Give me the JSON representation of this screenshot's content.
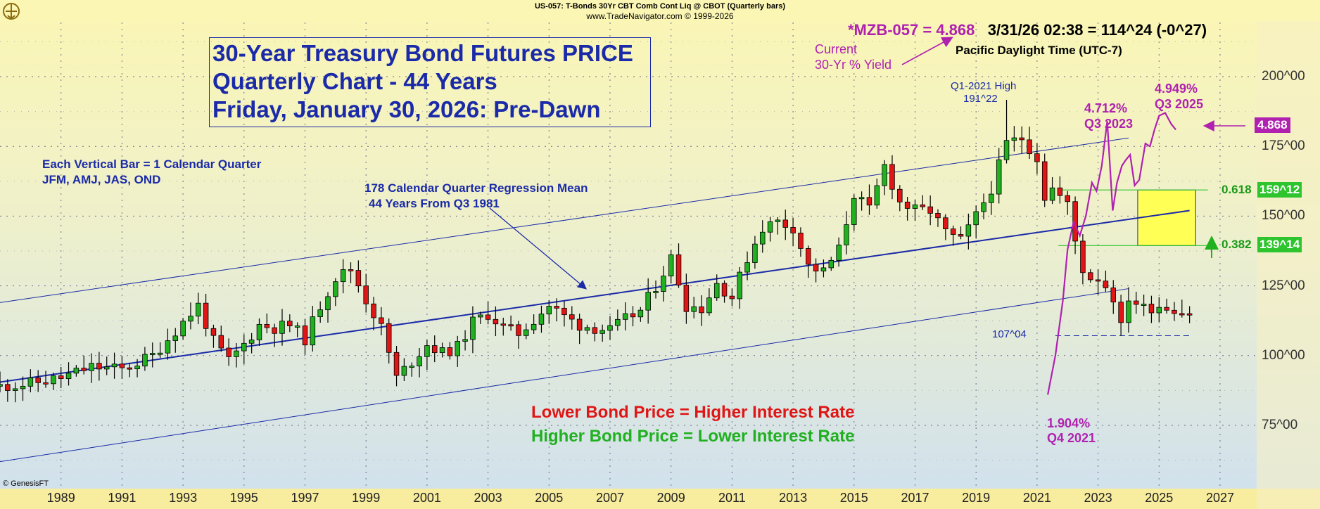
{
  "header": {
    "line1": "US-057:  T-Bonds 30Yr CBT Comb Cont Liq @ CBOT  (Quarterly bars)",
    "line2": "www.TradeNavigator.com © 1999-2026"
  },
  "title_box": {
    "line1": "30-Year Treasury Bond Futures PRICE",
    "line2": "Quarterly Chart - 44 Years",
    "line3": "Friday, January 30, 2026: Pre-Dawn"
  },
  "quote": {
    "symbol_value": "*MZB-057 = 4.868",
    "rest": "3/31/26 02:38 = 114^24 (-0^27)",
    "timezone": "Pacific Daylight Time (UTC-7)"
  },
  "annotations": {
    "current_line1": "Current",
    "current_line2": "30-Yr % Yield",
    "q1_high_line1": "Q1-2021 High",
    "q1_high_line2": "191^22",
    "y4712_line1": "4.712%",
    "y4712_line2": "Q3 2023",
    "y4949_line1": "4.949%",
    "y4949_line2": "Q3 2025",
    "y1904_line1": "1.904%",
    "y1904_line2": "Q4 2021",
    "each_bar_line1": "Each Vertical Bar = 1 Calendar Quarter",
    "each_bar_line2": "JFM, AMJ, JAS, OND",
    "regression_line1": "178 Calendar Quarter Regression Mean",
    "regression_line2": "44 Years From Q3 1981",
    "low_label": "107^04",
    "lower_price": "Lower Bond Price = Higher Interest Rate",
    "higher_price": "Higher Bond Price = Lower Interest Rate",
    "credit": "© GenesisFT"
  },
  "fib": {
    "upper_ratio": "0.618",
    "upper_price": "159^12",
    "lower_ratio": "0.382",
    "lower_price": "139^14"
  },
  "current_tag": "4.868",
  "colors": {
    "bull": "#20b020",
    "bear": "#e01515",
    "regression": "#1a2aa8",
    "yield": "#b021b0",
    "fib_box": "#ffff55",
    "fib_line": "#2ec42e",
    "bg_top": "#fbf6b4",
    "bg_bottom": "#cfe0ef"
  },
  "chart_data": {
    "type": "candlestick",
    "title": "30-Year Treasury Bond Futures PRICE",
    "ylim": [
      55,
      225
    ],
    "y_ticks": [
      "75^00",
      "100^00",
      "125^00",
      "150^00",
      "175^00",
      "200^00"
    ],
    "y_tick_values": [
      75,
      100,
      125,
      150,
      175,
      200
    ],
    "x_ticks": [
      "1989",
      "1991",
      "1993",
      "1995",
      "1997",
      "1999",
      "2001",
      "2003",
      "2005",
      "2007",
      "2009",
      "2011",
      "2013",
      "2015",
      "2017",
      "2019",
      "2021",
      "2023",
      "2025",
      "2027"
    ],
    "x_tick_values": [
      1989,
      1991,
      1993,
      1995,
      1997,
      1999,
      2001,
      2003,
      2005,
      2007,
      2009,
      2011,
      2013,
      2015,
      2017,
      2019,
      2021,
      2023,
      2025,
      2027
    ],
    "xlim": [
      1987,
      2028.2
    ],
    "grid": true,
    "close_anchors": [
      [
        1987.0,
        89
      ],
      [
        1988.0,
        90
      ],
      [
        1989.0,
        92
      ],
      [
        1990.0,
        96
      ],
      [
        1991.0,
        95
      ],
      [
        1992.0,
        100
      ],
      [
        1993.0,
        112
      ],
      [
        1993.5,
        118
      ],
      [
        1994.0,
        105
      ],
      [
        1994.5,
        98
      ],
      [
        1995.0,
        104
      ],
      [
        1995.5,
        111
      ],
      [
        1996.0,
        110
      ],
      [
        1996.5,
        111
      ],
      [
        1997.0,
        106
      ],
      [
        1997.5,
        118
      ],
      [
        1998.0,
        128
      ],
      [
        1998.5,
        131
      ],
      [
        1999.0,
        120
      ],
      [
        1999.5,
        110
      ],
      [
        2000.0,
        92
      ],
      [
        2000.5,
        98
      ],
      [
        2001.0,
        104
      ],
      [
        2001.5,
        101
      ],
      [
        2002.0,
        103
      ],
      [
        2002.5,
        112
      ],
      [
        2003.0,
        115
      ],
      [
        2003.5,
        110
      ],
      [
        2004.0,
        108
      ],
      [
        2004.5,
        113
      ],
      [
        2005.0,
        118
      ],
      [
        2005.5,
        114
      ],
      [
        2006.0,
        111
      ],
      [
        2006.5,
        110
      ],
      [
        2007.0,
        109
      ],
      [
        2007.5,
        113
      ],
      [
        2008.0,
        116
      ],
      [
        2008.5,
        125
      ],
      [
        2009.0,
        135
      ],
      [
        2009.5,
        118
      ],
      [
        2010.0,
        117
      ],
      [
        2010.5,
        126
      ],
      [
        2011.0,
        121
      ],
      [
        2011.5,
        135
      ],
      [
        2012.0,
        146
      ],
      [
        2012.5,
        148
      ],
      [
        2013.0,
        146
      ],
      [
        2013.5,
        132
      ],
      [
        2014.0,
        130
      ],
      [
        2014.5,
        138
      ],
      [
        2015.0,
        158
      ],
      [
        2015.5,
        152
      ],
      [
        2016.0,
        168
      ],
      [
        2016.5,
        155
      ],
      [
        2017.0,
        152
      ],
      [
        2017.5,
        152
      ],
      [
        2018.0,
        144
      ],
      [
        2018.5,
        141
      ],
      [
        2019.0,
        150
      ],
      [
        2019.5,
        160
      ],
      [
        2020.0,
        176
      ],
      [
        2020.5,
        178
      ],
      [
        2021.0,
        171
      ],
      [
        2021.25,
        157
      ],
      [
        2021.5,
        160
      ],
      [
        2022.0,
        154
      ],
      [
        2022.25,
        141
      ],
      [
        2022.5,
        131
      ],
      [
        2022.75,
        128
      ],
      [
        2023.0,
        128
      ],
      [
        2023.25,
        125
      ],
      [
        2023.5,
        121
      ],
      [
        2023.75,
        110
      ],
      [
        2024.0,
        121
      ],
      [
        2024.5,
        117
      ],
      [
        2025.0,
        118
      ],
      [
        2025.5,
        117
      ],
      [
        2026.0,
        114.75
      ]
    ],
    "regression_mean": {
      "x": [
        1987,
        2026
      ],
      "y": [
        90.5,
        152
      ]
    },
    "channel_upper": {
      "x": [
        1987,
        2024
      ],
      "y": [
        119,
        178
      ]
    },
    "channel_lower": {
      "x": [
        1987,
        2024
      ],
      "y": [
        62,
        124
      ]
    },
    "fib_levels": [
      159.375,
      139.4375
    ],
    "low_level": 107.125,
    "q1_2021_high": 191.6875,
    "yield_line": {
      "name": "30-Yr % Yield",
      "points": [
        [
          2021.35,
          86
        ],
        [
          2021.6,
          100
        ],
        [
          2021.85,
          120
        ],
        [
          2022.0,
          138
        ],
        [
          2022.2,
          148
        ],
        [
          2022.4,
          143
        ],
        [
          2022.6,
          150
        ],
        [
          2022.8,
          162
        ],
        [
          2022.95,
          159
        ],
        [
          2023.12,
          168
        ],
        [
          2023.3,
          184
        ],
        [
          2023.48,
          152
        ],
        [
          2023.62,
          162
        ],
        [
          2023.78,
          168
        ],
        [
          2023.9,
          170
        ],
        [
          2024.05,
          172
        ],
        [
          2024.2,
          161
        ],
        [
          2024.35,
          163
        ],
        [
          2024.55,
          176
        ],
        [
          2024.7,
          175
        ],
        [
          2024.85,
          181
        ],
        [
          2025.0,
          186
        ],
        [
          2025.2,
          187
        ],
        [
          2025.4,
          183
        ],
        [
          2025.55,
          181
        ]
      ]
    },
    "fib_box": {
      "x": [
        2024.3,
        2026.2
      ],
      "y": [
        139.4375,
        159.375
      ]
    }
  }
}
